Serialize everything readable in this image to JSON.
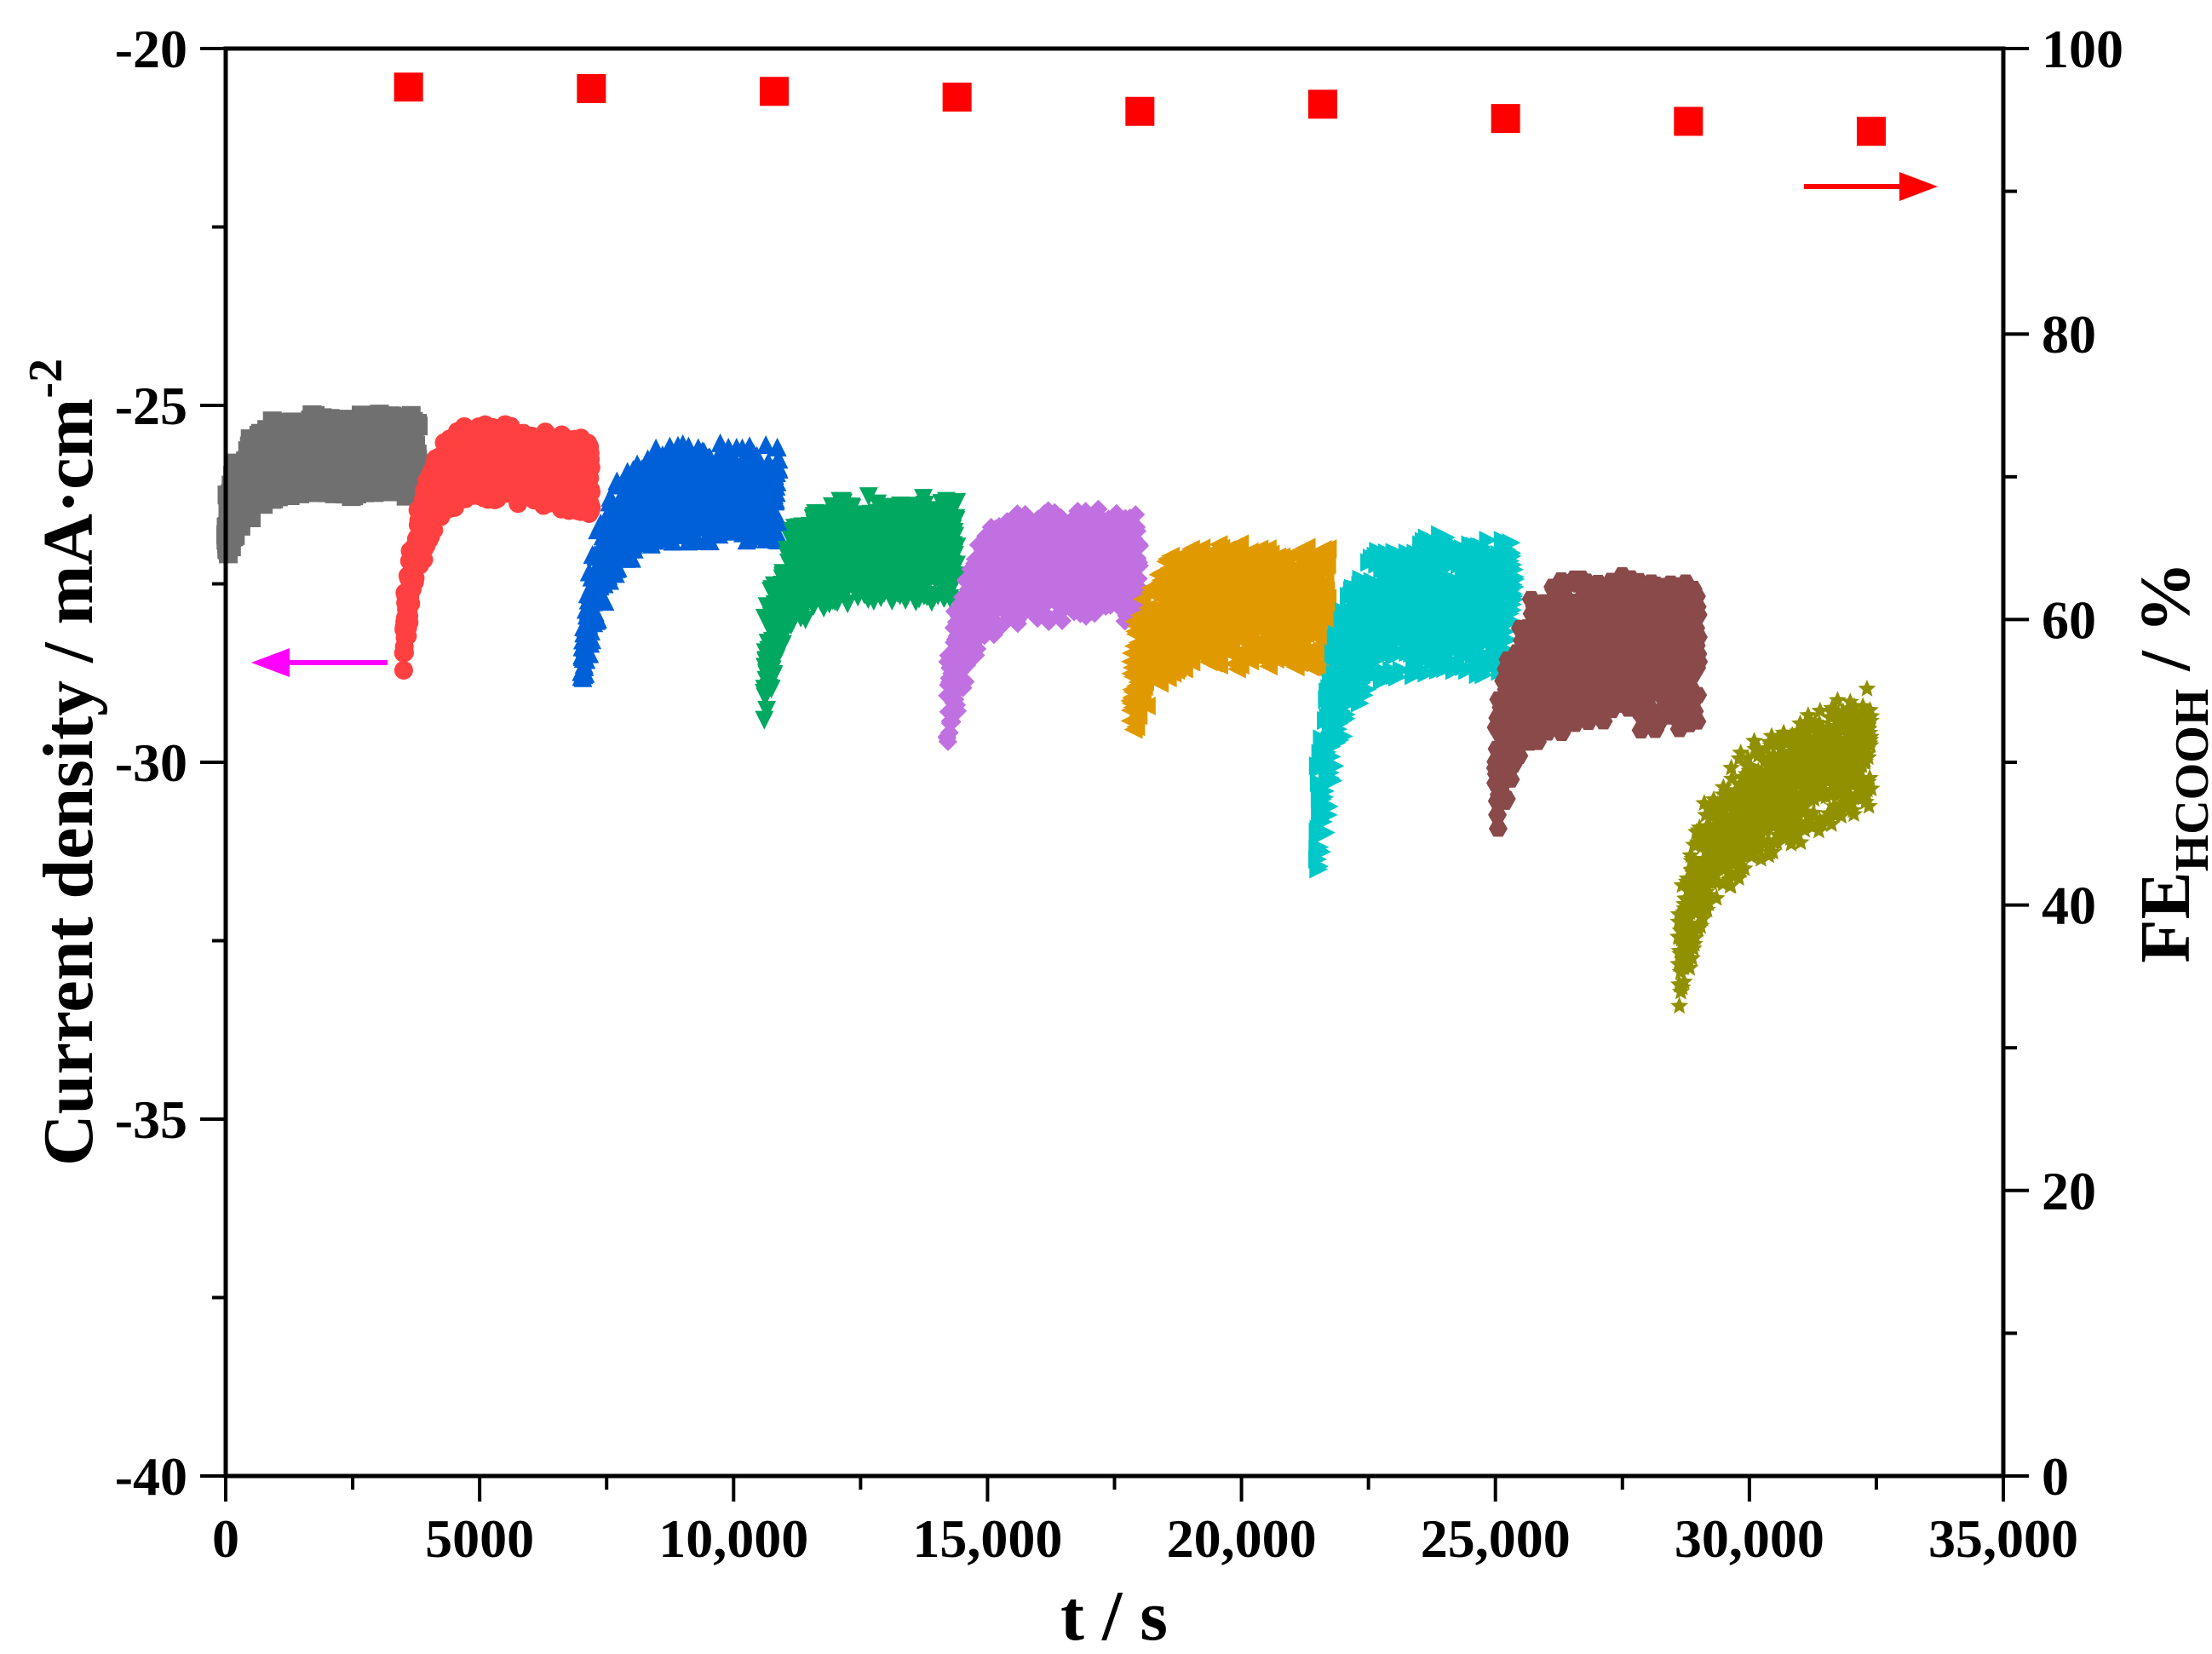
{
  "chart_data": {
    "type": "scatter",
    "xlabel": "t / s",
    "ylabel": "Current density / mA·cm",
    "ylabel_superscript": "-2",
    "y2label": "FE",
    "y2label_subscript": "HCOOH",
    "y2label_unit": " / %",
    "xlim": [
      0,
      35000
    ],
    "ylim": [
      -40,
      -20
    ],
    "y2lim": [
      0,
      100
    ],
    "x_ticks": [
      "0",
      "5000",
      "10,000",
      "15,000",
      "20,000",
      "25,000",
      "30,000",
      "35,000"
    ],
    "y_ticks": [
      "-20",
      "-25",
      "-30",
      "-35",
      "-40"
    ],
    "y2_ticks": [
      "100",
      "80",
      "60",
      "40",
      "20",
      "0"
    ],
    "grid": false,
    "legend": "none",
    "current_series": [
      {
        "marker": "square",
        "color": "#707070",
        "t_start": 0,
        "t_end": 3800,
        "j_start": -26.6,
        "j_plateau": -25.5,
        "j_plateau_end": -25.6,
        "band": 1.2
      },
      {
        "marker": "circle",
        "color": "#ff4040",
        "t_start": 3500,
        "t_end": 7200,
        "j_start": -28.1,
        "j_plateau": -25.4,
        "j_plateau_end": -25.9,
        "band": 1.1
      },
      {
        "marker": "triangle-up",
        "color": "#0060d8",
        "t_start": 7000,
        "t_end": 10900,
        "j_start": -28.5,
        "j_plateau": -26.0,
        "j_plateau_end": -26.1,
        "band": 1.4
      },
      {
        "marker": "triangle-down",
        "color": "#00a860",
        "t_start": 10600,
        "t_end": 14400,
        "j_start": -28.6,
        "j_plateau": -26.8,
        "j_plateau_end": -26.9,
        "band": 1.5
      },
      {
        "marker": "diamond",
        "color": "#c070e0",
        "t_start": 14200,
        "t_end": 18000,
        "j_start": -29.1,
        "j_plateau": -27.0,
        "j_plateau_end": -27.1,
        "band": 1.6
      },
      {
        "marker": "triangle-left",
        "color": "#e09a00",
        "t_start": 17800,
        "t_end": 21700,
        "j_start": -28.8,
        "j_plateau": -27.5,
        "j_plateau_end": -27.7,
        "band": 1.8
      },
      {
        "marker": "triangle-right",
        "color": "#00c8c8",
        "t_start": 21500,
        "t_end": 25400,
        "j_start": -30.8,
        "j_plateau": -27.5,
        "j_plateau_end": -27.6,
        "band": 2.0
      },
      {
        "marker": "hexagon",
        "color": "#8a4a4a",
        "t_start": 25000,
        "t_end": 29000,
        "j_start": -30.0,
        "j_plateau": -28.1,
        "j_plateau_end": -28.3,
        "band": 2.2
      },
      {
        "marker": "star",
        "color": "#909000",
        "t_start": 28600,
        "t_end": 32400,
        "j_start": -32.6,
        "j_plateau": -30.8,
        "j_plateau_end": -29.6,
        "band": 1.8
      }
    ],
    "fe_series": {
      "marker": "square",
      "color": "#ff0000",
      "t": [
        3600,
        7200,
        10800,
        14400,
        18000,
        21600,
        25200,
        28800,
        32400
      ],
      "fe": [
        97.3,
        97.2,
        97.0,
        96.6,
        95.6,
        96.1,
        95.1,
        94.9,
        94.2
      ]
    },
    "annotations": [
      {
        "type": "arrow",
        "direction": "left",
        "color": "#ff00ff",
        "meaning": "current density axis"
      },
      {
        "type": "arrow",
        "direction": "right",
        "color": "#ff0000",
        "meaning": "FE axis"
      }
    ]
  }
}
